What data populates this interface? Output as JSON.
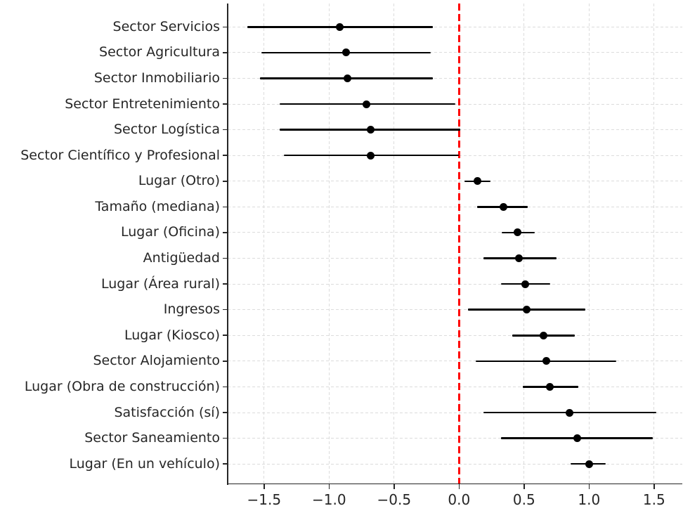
{
  "chart_data": {
    "type": "scatter",
    "subtype": "forest-coefficient-plot",
    "title": "",
    "xlabel": "",
    "ylabel": "",
    "grid": true,
    "legend": "none",
    "x_axis": {
      "min": -1.78,
      "max": 1.72,
      "ticks": [
        -1.5,
        -1.0,
        -0.5,
        0.0,
        0.5,
        1.0,
        1.5
      ],
      "tick_labels": [
        "−1.5",
        "−1.0",
        "−0.5",
        "0.0",
        "0.5",
        "1.0",
        "1.5"
      ]
    },
    "reference_line": {
      "x": 0.0,
      "color": "#ff0000",
      "style": "dashed"
    },
    "categories": [
      "Sector Servicios",
      "Sector Agricultura",
      "Sector Inmobiliario",
      "Sector Entretenimiento",
      "Sector Logística",
      "Sector Científico y Profesional",
      "Lugar (Otro)",
      "Tamaño (mediana)",
      "Lugar (Oficina)",
      "Antigüedad",
      "Lugar (Área rural)",
      "Ingresos",
      "Lugar (Kiosco)",
      "Sector Alojamiento",
      "Lugar (Obra de construcción)",
      "Satisfacción (sí)",
      "Sector Saneamiento",
      "Lugar (En un vehículo)"
    ],
    "points": [
      {
        "label": "Sector Servicios",
        "value": -0.92,
        "ci_low": -1.63,
        "ci_high": -0.2
      },
      {
        "label": "Sector Agricultura",
        "value": -0.87,
        "ci_low": -1.52,
        "ci_high": -0.22
      },
      {
        "label": "Sector Inmobiliario",
        "value": -0.86,
        "ci_low": -1.53,
        "ci_high": -0.2
      },
      {
        "label": "Sector Entretenimiento",
        "value": -0.71,
        "ci_low": -1.38,
        "ci_high": -0.03
      },
      {
        "label": "Sector Logística",
        "value": -0.68,
        "ci_low": -1.38,
        "ci_high": 0.01
      },
      {
        "label": "Sector Científico y Profesional",
        "value": -0.68,
        "ci_low": -1.35,
        "ci_high": 0.0
      },
      {
        "label": "Lugar (Otro)",
        "value": 0.14,
        "ci_low": 0.04,
        "ci_high": 0.24
      },
      {
        "label": "Tamaño (mediana)",
        "value": 0.34,
        "ci_low": 0.14,
        "ci_high": 0.53
      },
      {
        "label": "Lugar (Oficina)",
        "value": 0.45,
        "ci_low": 0.33,
        "ci_high": 0.58
      },
      {
        "label": "Antigüedad",
        "value": 0.46,
        "ci_low": 0.19,
        "ci_high": 0.75
      },
      {
        "label": "Lugar (Área rural)",
        "value": 0.51,
        "ci_low": 0.32,
        "ci_high": 0.7
      },
      {
        "label": "Ingresos",
        "value": 0.52,
        "ci_low": 0.07,
        "ci_high": 0.97
      },
      {
        "label": "Lugar (Kiosco)",
        "value": 0.65,
        "ci_low": 0.41,
        "ci_high": 0.89
      },
      {
        "label": "Sector Alojamiento",
        "value": 0.67,
        "ci_low": 0.13,
        "ci_high": 1.21
      },
      {
        "label": "Lugar (Obra de construcción)",
        "value": 0.7,
        "ci_low": 0.49,
        "ci_high": 0.92
      },
      {
        "label": "Satisfacción (sí)",
        "value": 0.85,
        "ci_low": 0.19,
        "ci_high": 1.52
      },
      {
        "label": "Sector Saneamiento",
        "value": 0.91,
        "ci_low": 0.32,
        "ci_high": 1.49
      },
      {
        "label": "Lugar (En un vehículo)",
        "value": 1.0,
        "ci_low": 0.86,
        "ci_high": 1.13
      }
    ]
  },
  "colors": {
    "background": "#ffffff",
    "point": "#000000",
    "ci_line": "#000000",
    "grid": "#dcdcdc",
    "spine": "#262626",
    "text": "#262626",
    "reference": "#ff0000"
  }
}
